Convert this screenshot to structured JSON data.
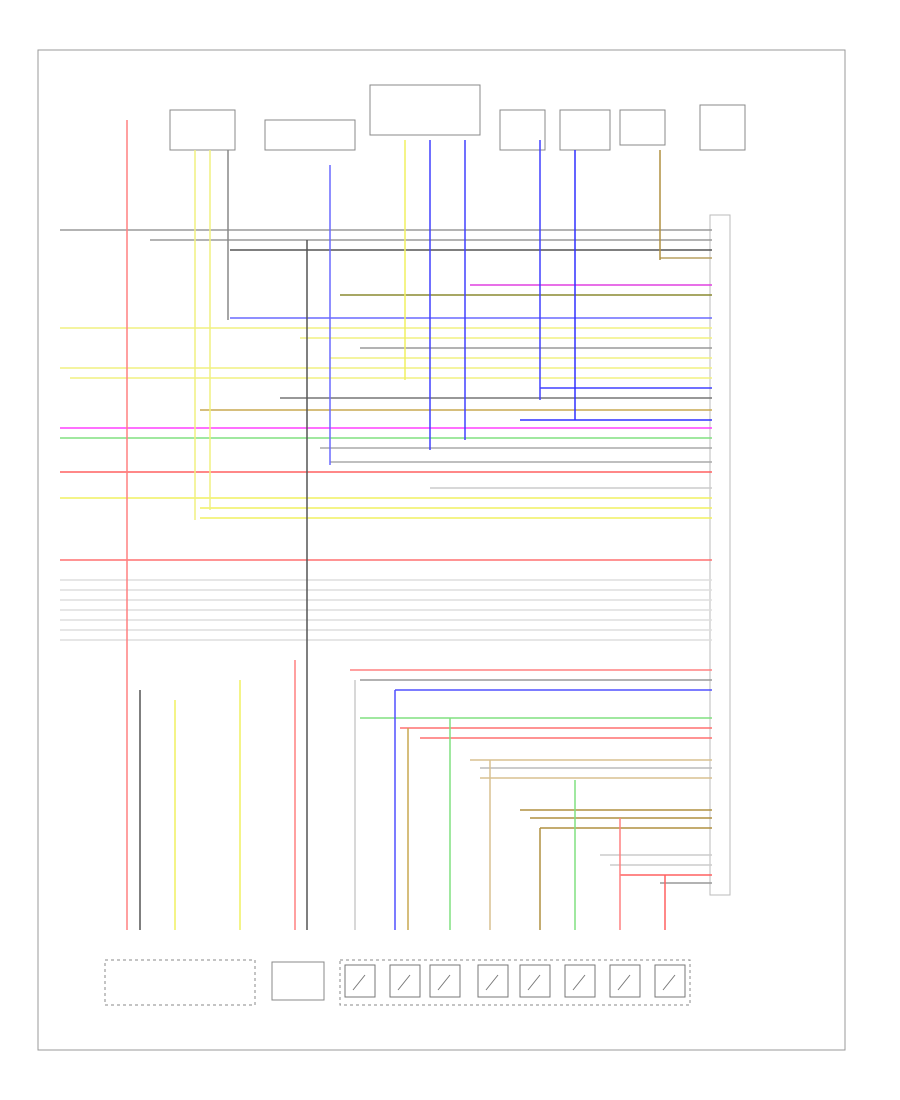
{
  "wires": {
    "colors": [
      "#9a9a9a",
      "#9a9a9a",
      "#555555",
      "#b8a060",
      "#e040e0",
      "#8a8a30",
      "#6a6aff",
      "#f0f080",
      "#f0f080",
      "#9a9a9a",
      "#f0f080",
      "#f0f080",
      "#f0f080",
      "#4040ff",
      "#777777",
      "#c8a850",
      "#3030ff",
      "#ff40ff",
      "#80e080",
      "#aaaaaa",
      "#aaaaaa",
      "#ff6060",
      "#cccccc",
      "#f0f060",
      "#f0f060",
      "#f0f060",
      "#ff7070",
      "#dddddd",
      "#dddddd",
      "#dddddd",
      "#dddddd",
      "#dddddd",
      "#dddddd",
      "#dddddd",
      "#ff8080",
      "#999999",
      "#5050ff",
      "#80e080",
      "#ff7070",
      "#ff7070",
      "#d8c090",
      "#bbbbbb",
      "#d8c090",
      "#b09040",
      "#b09040",
      "#b09040",
      "#cccccc",
      "#cccccc",
      "#ff6060",
      "#999999"
    ]
  }
}
